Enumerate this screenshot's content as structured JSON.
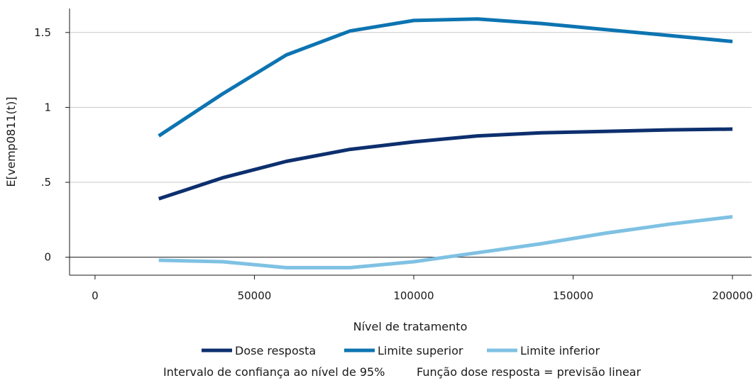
{
  "chart_data": {
    "type": "line",
    "title": "",
    "xlabel": "Nível de tratamento",
    "ylabel": "E[vemp0811(t)]",
    "xlim": [
      -8000,
      206000
    ],
    "ylim": [
      -0.12,
      1.66
    ],
    "x_ticks": [
      0,
      50000,
      100000,
      150000,
      200000
    ],
    "x_tick_labels": [
      "0",
      "50000",
      "100000",
      "150000",
      "200000"
    ],
    "y_ticks": [
      0,
      0.5,
      1,
      1.5
    ],
    "y_tick_labels": [
      "0",
      ".5",
      "1",
      "1.5"
    ],
    "grid": "horizontal",
    "reference_line_y": 0,
    "legend_position": "bottom",
    "x": [
      20000,
      40000,
      60000,
      80000,
      100000,
      120000,
      140000,
      160000,
      180000,
      200000
    ],
    "series": [
      {
        "name": "Dose resposta",
        "color": "#0d2f6e",
        "values": [
          0.39,
          0.53,
          0.64,
          0.72,
          0.77,
          0.81,
          0.83,
          0.84,
          0.85,
          0.855
        ]
      },
      {
        "name": "Limite superior",
        "color": "#0d74b1",
        "values": [
          0.81,
          1.09,
          1.35,
          1.51,
          1.58,
          1.59,
          1.56,
          1.52,
          1.48,
          1.44
        ]
      },
      {
        "name": "Limite inferior",
        "color": "#7fc1e3",
        "values": [
          -0.02,
          -0.03,
          -0.07,
          -0.07,
          -0.03,
          0.03,
          0.09,
          0.16,
          0.22,
          0.27
        ]
      }
    ],
    "notes": [
      "Intervalo de confiança ao nível de 95%",
      "Função dose resposta = previsão linear"
    ]
  }
}
